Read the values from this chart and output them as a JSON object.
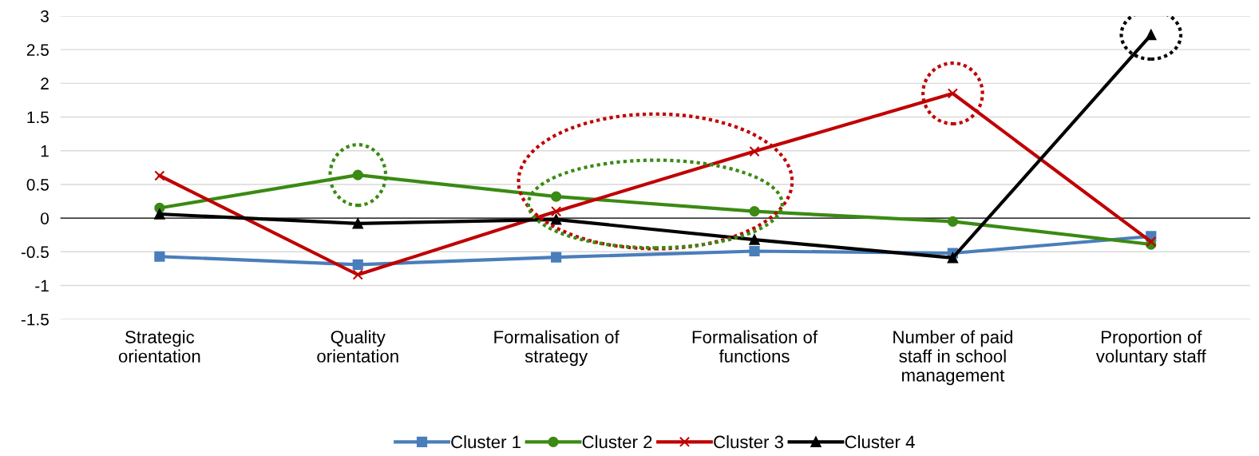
{
  "chart_data": {
    "type": "line",
    "categories": [
      "Strategic\norientation",
      "Quality\norientation",
      "Formalisation of\nstrategy",
      "Formalisation of\nfunctions",
      "Number of paid\nstaff in school\nmanagement",
      "Proportion of\nvoluntary staff"
    ],
    "series": [
      {
        "name": "Cluster 1",
        "color": "#4a7ebb",
        "marker": "square",
        "values": [
          -0.57,
          -0.69,
          -0.58,
          -0.49,
          -0.52,
          -0.27
        ]
      },
      {
        "name": "Cluster 2",
        "color": "#3a8a13",
        "marker": "circle",
        "values": [
          0.15,
          0.64,
          0.32,
          0.1,
          -0.05,
          -0.39
        ]
      },
      {
        "name": "Cluster 3",
        "color": "#c00000",
        "marker": "cross",
        "values": [
          0.63,
          -0.84,
          0.1,
          0.99,
          1.85,
          -0.35
        ]
      },
      {
        "name": "Cluster 4",
        "color": "#000000",
        "marker": "triangle",
        "values": [
          0.06,
          -0.08,
          -0.02,
          -0.32,
          -0.59,
          2.72
        ]
      }
    ],
    "ylim": [
      -1.5,
      3
    ],
    "yticks": [
      -1.5,
      -1,
      -0.5,
      0,
      0.5,
      1,
      1.5,
      2,
      2.5,
      3
    ],
    "grid": "y",
    "legend": "bottom",
    "line_style": "solid"
  }
}
